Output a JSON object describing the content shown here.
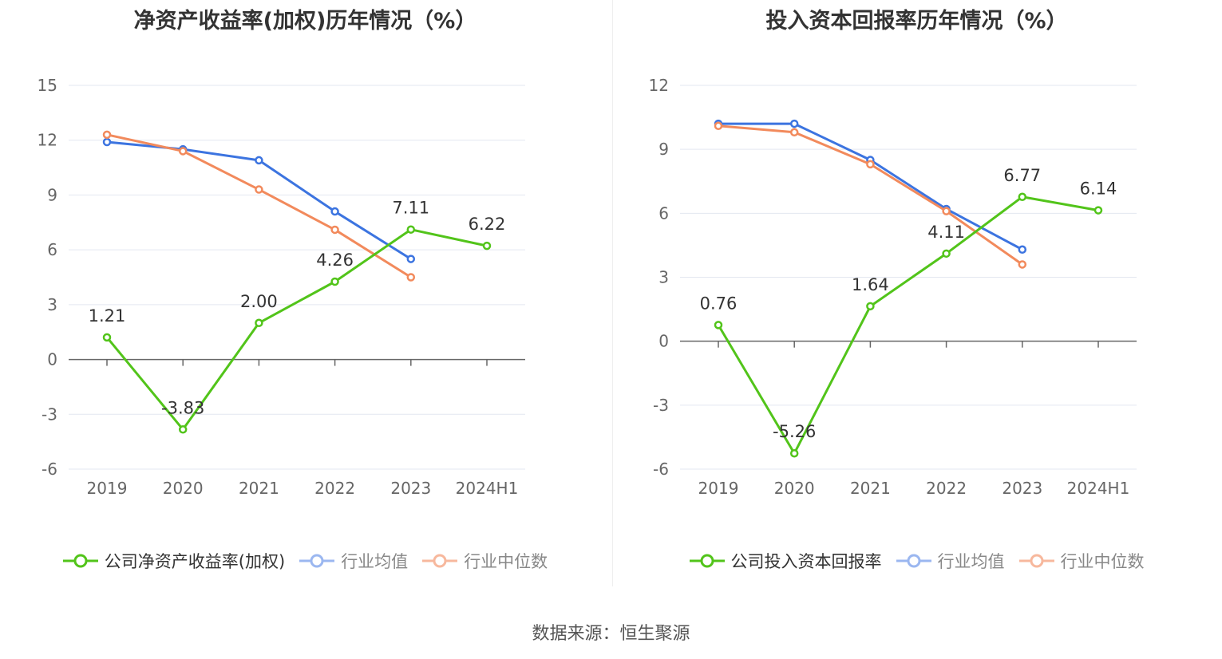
{
  "source": "数据来源：恒生聚源",
  "legend_colors": {
    "company": "#52c41a",
    "industry_avg": "#3c74e0",
    "industry_median": "#f28a5c"
  },
  "chart_data": [
    {
      "type": "line",
      "title": "净资产收益率(加权)历年情况（%）",
      "categories": [
        "2019",
        "2020",
        "2021",
        "2022",
        "2023",
        "2024H1"
      ],
      "ylim": [
        -6,
        15
      ],
      "yticks": [
        -6,
        -3,
        0,
        3,
        6,
        9,
        12,
        15
      ],
      "grid": true,
      "legend_position": "bottom",
      "series": [
        {
          "name": "公司净资产收益率(加权)",
          "color": "#52c41a",
          "values": [
            1.21,
            -3.83,
            2.0,
            4.26,
            7.11,
            6.22
          ],
          "labels": [
            "1.21",
            "-3.83",
            "2.00",
            "4.26",
            "7.11",
            "6.22"
          ]
        },
        {
          "name": "行业均值",
          "color": "#3c74e0",
          "values": [
            11.9,
            11.5,
            10.9,
            8.1,
            5.5,
            null
          ]
        },
        {
          "name": "行业中位数",
          "color": "#f28a5c",
          "values": [
            12.3,
            11.4,
            9.3,
            7.1,
            4.5,
            null
          ]
        }
      ]
    },
    {
      "type": "line",
      "title": "投入资本回报率历年情况（%）",
      "categories": [
        "2019",
        "2020",
        "2021",
        "2022",
        "2023",
        "2024H1"
      ],
      "ylim": [
        -6,
        12
      ],
      "yticks": [
        -6,
        -3,
        0,
        3,
        6,
        9,
        12
      ],
      "grid": true,
      "legend_position": "bottom",
      "series": [
        {
          "name": "公司投入资本回报率",
          "color": "#52c41a",
          "values": [
            0.76,
            -5.26,
            1.64,
            4.11,
            6.77,
            6.14
          ],
          "labels": [
            "0.76",
            "-5.26",
            "1.64",
            "4.11",
            "6.77",
            "6.14"
          ]
        },
        {
          "name": "行业均值",
          "color": "#3c74e0",
          "values": [
            10.2,
            10.2,
            8.5,
            6.2,
            4.3,
            null
          ]
        },
        {
          "name": "行业中位数",
          "color": "#f28a5c",
          "values": [
            10.1,
            9.8,
            8.3,
            6.1,
            3.6,
            null
          ]
        }
      ]
    }
  ]
}
